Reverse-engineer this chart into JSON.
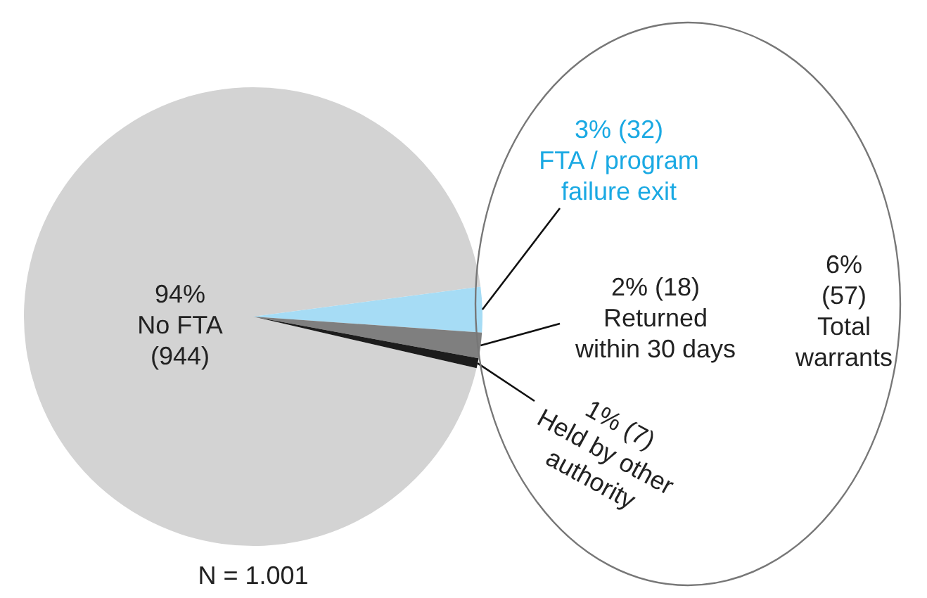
{
  "chart_data": {
    "type": "pie",
    "categories": [
      "No FTA",
      "FTA / program failure exit",
      "Returned within 30 days",
      "Held by other authority"
    ],
    "values": [
      944,
      32,
      18,
      7
    ],
    "value_labels": [
      "94% (944)",
      "3% (32)",
      "2% (18)",
      "1% (7)"
    ],
    "colors": [
      "#d3d3d3",
      "#a6dcf5",
      "#7f7f7f",
      "#1c1c1c"
    ],
    "annotations": [
      "6% (57) Total warrants",
      "N = 1.001"
    ],
    "legend": false
  }
}
